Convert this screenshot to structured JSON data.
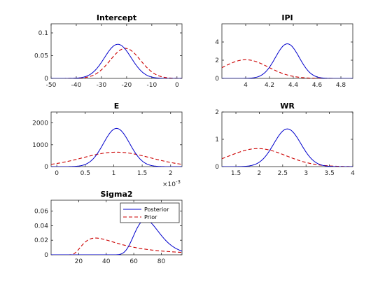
{
  "chart_data": [
    {
      "type": "line",
      "title": "Intercept",
      "xlim": [
        -50,
        2
      ],
      "ylim": [
        0,
        0.12
      ],
      "xticks": [
        -50,
        -40,
        -30,
        -20,
        -10,
        0
      ],
      "xtick_labels": [
        "-50",
        "-40",
        "-30",
        "-20",
        "-10",
        "0"
      ],
      "yticks": [
        0,
        0.05,
        0.1
      ],
      "ytick_labels": [
        "0",
        "0.05",
        "0.1"
      ],
      "posterior": {
        "mean": -23.5,
        "sd": 5.3,
        "peak": 0.075
      },
      "prior": {
        "mean": -20.5,
        "sd": 6.0,
        "peak": 0.066
      }
    },
    {
      "type": "line",
      "title": "IPI",
      "xlim": [
        3.8,
        4.9
      ],
      "ylim": [
        0,
        6
      ],
      "xticks": [
        4,
        4.2,
        4.4,
        4.6,
        4.8
      ],
      "xtick_labels": [
        "4",
        "4.2",
        "4.4",
        "4.6",
        "4.8"
      ],
      "yticks": [
        0,
        2,
        4
      ],
      "ytick_labels": [
        "0",
        "2",
        "4"
      ],
      "posterior": {
        "mean": 4.35,
        "sd": 0.1,
        "peak": 3.8
      },
      "prior": {
        "mean": 4.0,
        "sd": 0.19,
        "peak": 2.05
      }
    },
    {
      "type": "line",
      "title": "E",
      "xlim": [
        -0.0001,
        0.0022
      ],
      "ylim": [
        0,
        2500
      ],
      "xticks": [
        0,
        0.0005,
        0.001,
        0.0015,
        0.002
      ],
      "xtick_labels": [
        "0",
        "0.5",
        "1",
        "1.5",
        "2"
      ],
      "x_multiplier": "×10",
      "x_multiplier_exponent": "-3",
      "yticks": [
        0,
        1000,
        2000
      ],
      "ytick_labels": [
        "0",
        "1000",
        "2000"
      ],
      "posterior": {
        "mean": 0.00105,
        "sd": 0.00023,
        "peak": 1750
      },
      "prior": {
        "mean": 0.00105,
        "sd": 0.0006,
        "peak": 660
      }
    },
    {
      "type": "line",
      "title": "WR",
      "xlim": [
        1.2,
        4.0
      ],
      "ylim": [
        0,
        2
      ],
      "xticks": [
        1.5,
        2,
        2.5,
        3,
        3.5,
        4
      ],
      "xtick_labels": [
        "1.5",
        "2",
        "2.5",
        "3",
        "3.5",
        "4"
      ],
      "yticks": [
        0,
        1,
        2
      ],
      "ytick_labels": [
        "0",
        "1",
        "2"
      ],
      "posterior": {
        "mean": 2.6,
        "sd": 0.29,
        "peak": 1.38
      },
      "prior": {
        "mean": 1.97,
        "sd": 0.6,
        "peak": 0.66
      }
    },
    {
      "type": "line",
      "title": "Sigma2",
      "xlim": [
        0,
        95
      ],
      "ylim": [
        0,
        0.075
      ],
      "xticks": [
        20,
        40,
        60,
        80
      ],
      "xtick_labels": [
        "20",
        "40",
        "60",
        "80"
      ],
      "yticks": [
        0,
        0.02,
        0.04,
        0.06
      ],
      "ytick_labels": [
        "0",
        "0.02",
        "0.04",
        "0.06"
      ],
      "posterior": {
        "type": "invgamma",
        "shape": 22,
        "scale": 1000,
        "start": 25,
        "peak": 0.048
      },
      "prior": {
        "type": "invgamma",
        "shape": 2.5,
        "scale": 85,
        "start": 8,
        "peak": 0.023
      },
      "legend": [
        "Posterior",
        "Prior"
      ],
      "legend_position": "top-right"
    }
  ]
}
